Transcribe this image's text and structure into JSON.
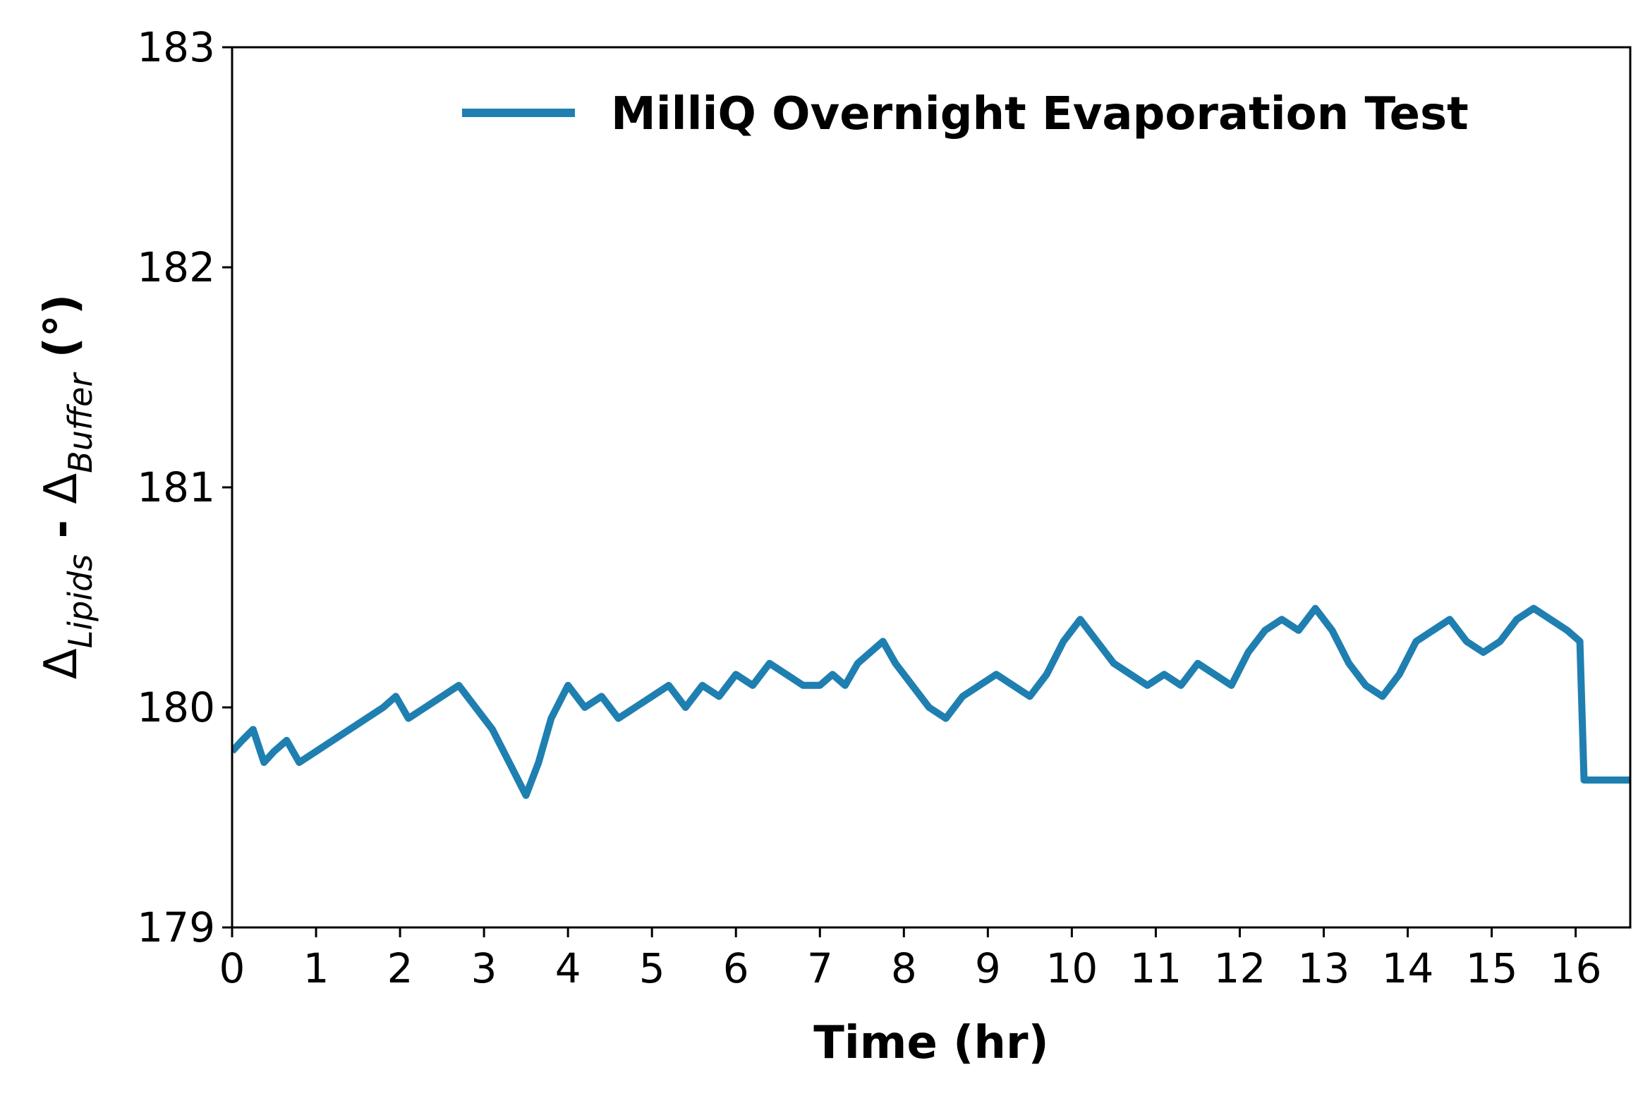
{
  "chart_data": {
    "type": "line",
    "title": "",
    "xlabel": "Time (hr)",
    "ylabel": {
      "delta": "Δ",
      "sub1": "Lipids",
      "middle": " - ",
      "sub2": "Buffer",
      "unit": " (°)"
    },
    "xlim": [
      0,
      16.65
    ],
    "ylim": [
      179,
      183
    ],
    "x_ticks": [
      "0",
      "1",
      "2",
      "3",
      "4",
      "5",
      "6",
      "7",
      "8",
      "9",
      "10",
      "11",
      "12",
      "13",
      "14",
      "15",
      "16"
    ],
    "y_ticks": [
      "179",
      "180",
      "181",
      "182",
      "183"
    ],
    "grid": false,
    "legend_position": "top-right",
    "series": [
      {
        "name": "MilliQ Overnight Evaporation Test",
        "color": "#1f7fb0",
        "x": [
          0,
          0.12,
          0.25,
          0.38,
          0.5,
          0.65,
          0.8,
          1.0,
          1.2,
          1.4,
          1.6,
          1.8,
          1.95,
          2.1,
          2.3,
          2.5,
          2.7,
          2.9,
          3.1,
          3.3,
          3.5,
          3.65,
          3.8,
          4.0,
          4.2,
          4.4,
          4.6,
          4.8,
          5.0,
          5.2,
          5.4,
          5.6,
          5.8,
          6.0,
          6.2,
          6.4,
          6.6,
          6.8,
          7.0,
          7.15,
          7.3,
          7.45,
          7.6,
          7.75,
          7.9,
          8.1,
          8.3,
          8.5,
          8.7,
          8.9,
          9.1,
          9.3,
          9.5,
          9.7,
          9.9,
          10.1,
          10.3,
          10.5,
          10.7,
          10.9,
          11.1,
          11.3,
          11.5,
          11.7,
          11.9,
          12.1,
          12.3,
          12.5,
          12.7,
          12.9,
          13.1,
          13.3,
          13.5,
          13.7,
          13.9,
          14.1,
          14.3,
          14.5,
          14.7,
          14.9,
          15.1,
          15.3,
          15.5,
          15.7,
          15.9,
          16.05,
          16.1,
          16.65
        ],
        "y": [
          179.8,
          179.85,
          179.9,
          179.75,
          179.8,
          179.85,
          179.75,
          179.8,
          179.85,
          179.9,
          179.95,
          180.0,
          180.05,
          179.95,
          180.0,
          180.05,
          180.1,
          180.0,
          179.9,
          179.75,
          179.6,
          179.75,
          179.95,
          180.1,
          180.0,
          180.05,
          179.95,
          180.0,
          180.05,
          180.1,
          180.0,
          180.1,
          180.05,
          180.15,
          180.1,
          180.2,
          180.15,
          180.1,
          180.1,
          180.15,
          180.1,
          180.2,
          180.25,
          180.3,
          180.2,
          180.1,
          180.0,
          179.95,
          180.05,
          180.1,
          180.15,
          180.1,
          180.05,
          180.15,
          180.3,
          180.4,
          180.3,
          180.2,
          180.15,
          180.1,
          180.15,
          180.1,
          180.2,
          180.15,
          180.1,
          180.25,
          180.35,
          180.4,
          180.35,
          180.45,
          180.35,
          180.2,
          180.1,
          180.05,
          180.15,
          180.3,
          180.35,
          180.4,
          180.3,
          180.25,
          180.3,
          180.4,
          180.45,
          180.4,
          180.35,
          180.3,
          179.67,
          179.67
        ]
      }
    ]
  }
}
